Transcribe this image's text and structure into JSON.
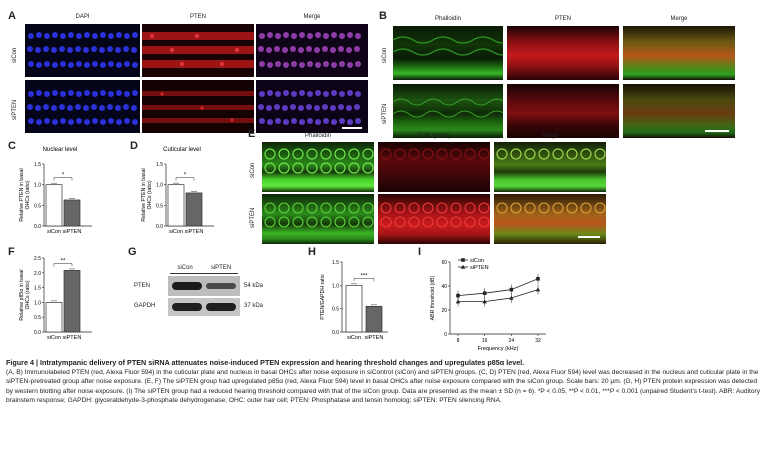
{
  "panels": {
    "A": {
      "letter": "A",
      "cols": [
        "DAPI",
        "PTEN",
        "Merge"
      ],
      "rows": [
        "siCon",
        "siPTEN"
      ]
    },
    "B": {
      "letter": "B",
      "cols": [
        "Phalloidin",
        "PTEN",
        "Merge"
      ],
      "rows": [
        "siCon",
        "siPTEN"
      ]
    },
    "E": {
      "letter": "E",
      "cols": [
        "Phalloidin",
        "PI3K (p85α)",
        "Merge"
      ],
      "rows": [
        "siCon",
        "siPTEN"
      ]
    },
    "G": {
      "letter": "G",
      "lanes": [
        "siCon",
        "siPTEN"
      ],
      "bands": [
        "PTEN",
        "GAPDH"
      ],
      "sizes": [
        "54 kDa",
        "37 kDa"
      ]
    }
  },
  "charts": {
    "C": {
      "letter": "C",
      "title": "Nuclear level",
      "ylabel": "Relative PTEN in basal OHCs (ratio)",
      "sig": "*"
    },
    "D": {
      "letter": "D",
      "title": "Cuticular level",
      "ylabel": "Relative PTEN in basal OHCs (ratio)",
      "sig": "*"
    },
    "F": {
      "letter": "F",
      "ylabel": "Relative p85α in basal OHCs (ratio)",
      "sig": "**"
    },
    "H": {
      "letter": "H",
      "ylabel": "PTEN/GAPDH ratio",
      "sig": "***"
    },
    "I": {
      "letter": "I",
      "ylabel": "ABR threshold (dB)",
      "xlabel": "Frequency (kHz)"
    }
  },
  "chart_data": [
    {
      "id": "C",
      "type": "bar",
      "categories": [
        "siCon",
        "siPTEN"
      ],
      "values": [
        1.0,
        0.63
      ],
      "ylim": [
        0,
        1.5
      ],
      "yticks": [
        "0.0",
        "0.5",
        "1.0",
        "1.5"
      ],
      "title": "Nuclear level",
      "ylabel": "Relative PTEN in basal OHCs (ratio)"
    },
    {
      "id": "D",
      "type": "bar",
      "categories": [
        "siCon",
        "siPTEN"
      ],
      "values": [
        1.0,
        0.8
      ],
      "ylim": [
        0,
        1.5
      ],
      "yticks": [
        "0.0",
        "0.5",
        "1.0",
        "1.5"
      ],
      "title": "Cuticular level",
      "ylabel": "Relative PTEN in basal OHCs (ratio)"
    },
    {
      "id": "F",
      "type": "bar",
      "categories": [
        "siCon",
        "siPTEN"
      ],
      "values": [
        1.0,
        2.08
      ],
      "ylim": [
        0,
        2.5
      ],
      "yticks": [
        "0.0",
        "0.5",
        "1.0",
        "1.5",
        "2.0",
        "2.5"
      ],
      "ylabel": "Relative p85α in basal OHCs (ratio)"
    },
    {
      "id": "H",
      "type": "bar",
      "categories": [
        "siCon",
        "siPTEN"
      ],
      "values": [
        1.0,
        0.55
      ],
      "ylim": [
        0,
        1.5
      ],
      "yticks": [
        "0.0",
        "0.5",
        "1.0",
        "1.5"
      ],
      "ylabel": "PTEN/GAPDH ratio"
    },
    {
      "id": "I",
      "type": "line",
      "x": [
        8,
        16,
        24,
        32
      ],
      "xticks": [
        "8",
        "16",
        "24",
        "32"
      ],
      "ylim": [
        0,
        60
      ],
      "yticks": [
        "0",
        "20",
        "40",
        "60"
      ],
      "series": [
        {
          "name": "siCon",
          "values": [
            32,
            34,
            37,
            46
          ]
        },
        {
          "name": "siPTEN",
          "values": [
            27,
            27,
            30,
            37
          ]
        }
      ],
      "ylabel": "ABR threshold (dB)",
      "xlabel": "Frequency (kHz)",
      "legend": "top-left"
    }
  ],
  "caption": {
    "head": "Figure 4  |  Intratympanic delivery of PTEN siRNA attenuates noise-induced PTEN expression and hearing threshold changes and upregulates p85α level.",
    "body": "(A, B) Immunolabeled PTEN (red, Alexa Fluor 594) in the cuticular plate and nucleus in basal OHCs after noise exposure in siControl (siCon) and siPTEN groups. (C, D) PTEN (red, Alexa Fluor 594) level was decreased in the nucleus and cuticular plate in the siPTEN-pretreated group after noise exposure. (E, F) The siPTEN group had upregulated p85α (red, Alexa Fluor 594) level in basal OHCs after noise exposure compared with the siCon group. Scale bars: 20 μm. (G, H) PTEN protein expression was detected by western blotting after noise exposure. (I) The siPTEN group had a reduced hearing threshold compared with that of the siCon group. Data are presented as the mean ± SD (n = 6). *P < 0.05, **P < 0.01, ***P < 0.001 (unpaired Student’s t-test). ABR: Auditory brainstem response; GAPDH: glyceraldehyde-3-phosphate dehydrogenase; OHC: outer hair cell; PTEN: Phosphatase and tensin homolog; siPTEN: PTEN silencing RNA."
  },
  "colors": {
    "dapi": "#1e22b8",
    "pten": "#c8191c",
    "phalloidin": "#2aa02a",
    "merge": "#8a3a6a",
    "bar_white": "#ffffff",
    "bar_dark": "#666666"
  }
}
